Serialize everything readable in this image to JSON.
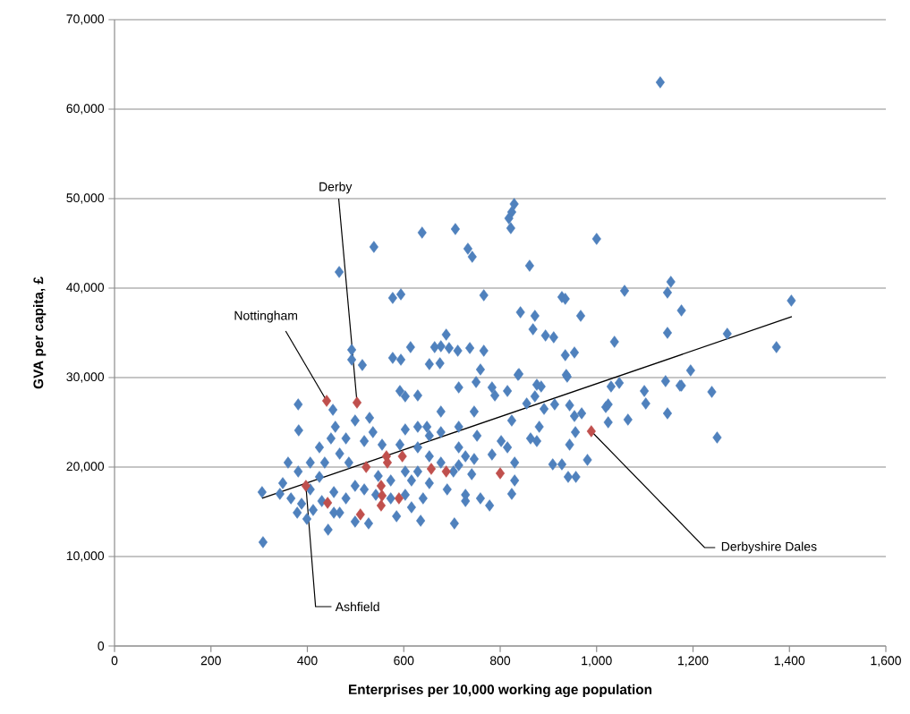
{
  "chart_data": {
    "type": "scatter",
    "xlabel": "Enterprises per 10,000 working age population",
    "ylabel": "GVA per capita, £",
    "marker": "diamond",
    "grid": "y",
    "xlim": [
      0,
      1600
    ],
    "ylim": [
      0,
      70000
    ],
    "xticks": [
      0,
      200,
      400,
      600,
      800,
      {
        "value": 1000,
        "label": "1,000"
      },
      {
        "value": 1200,
        "label": "1,200"
      },
      {
        "value": 1400,
        "label": "1,400"
      },
      {
        "value": 1600,
        "label": "1,600"
      }
    ],
    "yticks": [
      0,
      {
        "value": 10000,
        "label": "10,000"
      },
      {
        "value": 20000,
        "label": "20,000"
      },
      {
        "value": 30000,
        "label": "30,000"
      },
      {
        "value": 40000,
        "label": "40,000"
      },
      {
        "value": 50000,
        "label": "50,000"
      },
      {
        "value": 60000,
        "label": "60,000"
      },
      {
        "value": 70000,
        "label": "70,000"
      }
    ],
    "series": [
      {
        "color": "#4f81bd",
        "x": [
          1132,
          308,
          306,
          466,
          538,
          638,
          707,
          733,
          742,
          829,
          824,
          818,
          822,
          861,
          1000,
          1058,
          577,
          594,
          766,
          928,
          935,
          842,
          872,
          967,
          868,
          894,
          911,
          1037,
          688,
          614,
          664,
          677,
          694,
          712,
          737,
          766,
          935,
          954,
          492,
          492,
          514,
          577,
          594,
          653,
          675,
          759,
          839,
          937,
          1154,
          1147,
          1176,
          1404,
          1147,
          1271,
          1373,
          1195,
          1176,
          1239,
          1250,
          837,
          939,
          1143,
          1173,
          1099,
          1102,
          1147,
          1030,
          1047,
          1019,
          1024,
          1024,
          1065,
          944,
          954,
          969,
          956,
          944,
          981,
          909,
          928,
          941,
          957,
          876,
          885,
          872,
          855,
          891,
          913,
          881,
          863,
          876,
          830,
          830,
          824,
          778,
          759,
          783,
          815,
          802,
          824,
          789,
          783,
          815,
          750,
          746,
          752,
          746,
          728,
          381,
          382,
          360,
          349,
          379,
          406,
          399,
          443,
          453,
          458,
          425,
          449,
          480,
          406,
          436,
          467,
          425,
          455,
          480,
          455,
          499,
          527,
          499,
          529,
          536,
          518,
          555,
          592,
          603,
          629,
          677,
          714,
          648,
          629,
          603,
          592,
          629,
          653,
          714,
          728,
          616,
          653,
          690,
          728,
          640,
          616,
          585,
          635,
          705,
          499,
          518,
          547,
          573,
          603,
          629,
          677,
          703,
          741,
          714,
          677,
          714,
          653,
          388,
          430,
          542,
          573,
          603,
          467,
          486,
          381,
          366,
          343,
          412
        ],
        "values": [
          63000,
          11600,
          17200,
          41800,
          44600,
          46200,
          46600,
          44400,
          43500,
          49400,
          48500,
          47800,
          46700,
          42500,
          45500,
          39700,
          38900,
          39300,
          39200,
          39000,
          38800,
          37300,
          36900,
          36900,
          35400,
          34700,
          34500,
          34000,
          34800,
          33400,
          33400,
          33500,
          33300,
          33000,
          33300,
          33000,
          32500,
          32800,
          33100,
          32000,
          31400,
          32200,
          32000,
          31500,
          31600,
          30900,
          30400,
          30300,
          40700,
          39500,
          37500,
          38600,
          35000,
          34900,
          33400,
          30800,
          29100,
          28400,
          23300,
          30300,
          30100,
          29600,
          29100,
          28500,
          27100,
          26000,
          29000,
          29400,
          26700,
          27000,
          25000,
          25300,
          26900,
          25700,
          26000,
          23900,
          22500,
          20800,
          20300,
          20300,
          18900,
          18900,
          29200,
          29000,
          27900,
          27100,
          26500,
          27000,
          24500,
          23200,
          22900,
          20500,
          18500,
          17000,
          15700,
          16500,
          21400,
          22200,
          22900,
          25200,
          28000,
          28900,
          28500,
          29500,
          26200,
          23500,
          20900,
          16200,
          27000,
          24100,
          20500,
          18200,
          14900,
          17500,
          14200,
          13000,
          26400,
          24500,
          22200,
          23200,
          23200,
          20500,
          20500,
          21500,
          18900,
          17200,
          16500,
          14900,
          13900,
          13700,
          17900,
          25500,
          23900,
          22900,
          22500,
          28500,
          27900,
          28000,
          26200,
          28900,
          24500,
          24500,
          24200,
          22500,
          22200,
          21200,
          22200,
          21200,
          18500,
          18200,
          17500,
          16900,
          16500,
          15500,
          14500,
          14000,
          13700,
          25200,
          17500,
          19000,
          18500,
          19500,
          19500,
          20500,
          19500,
          19200,
          20200,
          23900,
          24500,
          23500,
          15900,
          16200,
          16900,
          16500,
          16900,
          14900,
          20500,
          19500,
          16500,
          17000,
          15200
        ]
      },
      {
        "color": "#c0504d",
        "x": [
          440,
          503,
          397,
          989,
          800,
          442,
          510,
          522,
          564,
          566,
          597,
          553,
          555,
          553,
          590,
          657,
          688
        ],
        "values": [
          27400,
          27200,
          17900,
          24000,
          19300,
          16000,
          14700,
          20000,
          21200,
          20500,
          21200,
          17900,
          16800,
          15700,
          16500,
          19800,
          19500
        ]
      },
      {
        "type": "line",
        "color": "#000000",
        "marker": "none",
        "x": [
          306,
          1405
        ],
        "values": [
          16500,
          36800
        ]
      }
    ],
    "annotations": [
      {
        "text": "Nottingham",
        "x": 440,
        "y": 27400
      },
      {
        "text": "Derby",
        "x": 503,
        "y": 27200
      },
      {
        "text": "Ashfield",
        "x": 397,
        "y": 17900
      },
      {
        "text": "Derbyshire Dales",
        "x": 989,
        "y": 24000
      }
    ]
  }
}
